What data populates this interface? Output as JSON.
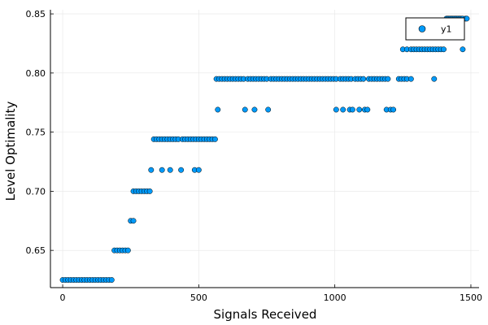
{
  "chart_data": {
    "type": "scatter",
    "title": "",
    "xlabel": "Signals Received",
    "ylabel": "Level Optimality",
    "xlim": [
      -45,
      1530
    ],
    "ylim": [
      0.6185,
      0.8535
    ],
    "xticks": [
      0,
      500,
      1000,
      1500
    ],
    "yticks": [
      0.65,
      0.7,
      0.75,
      0.8,
      0.85
    ],
    "ytick_labels": [
      "0.65",
      "0.70",
      "0.75",
      "0.80",
      "0.85"
    ],
    "grid": true,
    "legend": {
      "position": "top-right",
      "entries": [
        "y1"
      ]
    },
    "colors": {
      "marker": "#009af9",
      "marker_edge": "#000000",
      "grid": "#e6e6e6",
      "axis": "#000000"
    },
    "series": [
      {
        "name": "y1",
        "points": [
          [
            0,
            0.625
          ],
          [
            10,
            0.625
          ],
          [
            20,
            0.625
          ],
          [
            30,
            0.625
          ],
          [
            40,
            0.625
          ],
          [
            50,
            0.625
          ],
          [
            60,
            0.625
          ],
          [
            70,
            0.625
          ],
          [
            80,
            0.625
          ],
          [
            90,
            0.625
          ],
          [
            100,
            0.625
          ],
          [
            110,
            0.625
          ],
          [
            120,
            0.625
          ],
          [
            130,
            0.625
          ],
          [
            140,
            0.625
          ],
          [
            150,
            0.625
          ],
          [
            160,
            0.625
          ],
          [
            170,
            0.625
          ],
          [
            180,
            0.625
          ],
          [
            190,
            0.65
          ],
          [
            200,
            0.65
          ],
          [
            210,
            0.65
          ],
          [
            220,
            0.65
          ],
          [
            230,
            0.65
          ],
          [
            240,
            0.65
          ],
          [
            250,
            0.675
          ],
          [
            260,
            0.675
          ],
          [
            260,
            0.7
          ],
          [
            270,
            0.7
          ],
          [
            280,
            0.7
          ],
          [
            290,
            0.7
          ],
          [
            300,
            0.7
          ],
          [
            310,
            0.7
          ],
          [
            320,
            0.7
          ],
          [
            325,
            0.718
          ],
          [
            365,
            0.718
          ],
          [
            395,
            0.718
          ],
          [
            435,
            0.718
          ],
          [
            485,
            0.718
          ],
          [
            500,
            0.718
          ],
          [
            335,
            0.744
          ],
          [
            345,
            0.744
          ],
          [
            355,
            0.744
          ],
          [
            365,
            0.744
          ],
          [
            375,
            0.744
          ],
          [
            385,
            0.744
          ],
          [
            395,
            0.744
          ],
          [
            405,
            0.744
          ],
          [
            415,
            0.744
          ],
          [
            425,
            0.744
          ],
          [
            440,
            0.744
          ],
          [
            450,
            0.744
          ],
          [
            460,
            0.744
          ],
          [
            470,
            0.744
          ],
          [
            480,
            0.744
          ],
          [
            490,
            0.744
          ],
          [
            500,
            0.744
          ],
          [
            510,
            0.744
          ],
          [
            520,
            0.744
          ],
          [
            530,
            0.744
          ],
          [
            540,
            0.744
          ],
          [
            550,
            0.744
          ],
          [
            560,
            0.744
          ],
          [
            565,
            0.795
          ],
          [
            575,
            0.795
          ],
          [
            585,
            0.795
          ],
          [
            595,
            0.795
          ],
          [
            605,
            0.795
          ],
          [
            615,
            0.795
          ],
          [
            625,
            0.795
          ],
          [
            635,
            0.795
          ],
          [
            645,
            0.795
          ],
          [
            655,
            0.795
          ],
          [
            665,
            0.795
          ],
          [
            680,
            0.795
          ],
          [
            690,
            0.795
          ],
          [
            700,
            0.795
          ],
          [
            710,
            0.795
          ],
          [
            720,
            0.795
          ],
          [
            730,
            0.795
          ],
          [
            740,
            0.795
          ],
          [
            750,
            0.795
          ],
          [
            765,
            0.795
          ],
          [
            775,
            0.795
          ],
          [
            785,
            0.795
          ],
          [
            795,
            0.795
          ],
          [
            805,
            0.795
          ],
          [
            815,
            0.795
          ],
          [
            825,
            0.795
          ],
          [
            835,
            0.795
          ],
          [
            845,
            0.795
          ],
          [
            855,
            0.795
          ],
          [
            865,
            0.795
          ],
          [
            875,
            0.795
          ],
          [
            885,
            0.795
          ],
          [
            895,
            0.795
          ],
          [
            905,
            0.795
          ],
          [
            915,
            0.795
          ],
          [
            925,
            0.795
          ],
          [
            935,
            0.795
          ],
          [
            945,
            0.795
          ],
          [
            955,
            0.795
          ],
          [
            965,
            0.795
          ],
          [
            975,
            0.795
          ],
          [
            985,
            0.795
          ],
          [
            995,
            0.795
          ],
          [
            1005,
            0.795
          ],
          [
            1020,
            0.795
          ],
          [
            1030,
            0.795
          ],
          [
            1040,
            0.795
          ],
          [
            1050,
            0.795
          ],
          [
            1060,
            0.795
          ],
          [
            1075,
            0.795
          ],
          [
            1085,
            0.795
          ],
          [
            1095,
            0.795
          ],
          [
            1105,
            0.795
          ],
          [
            1125,
            0.795
          ],
          [
            1135,
            0.795
          ],
          [
            1145,
            0.795
          ],
          [
            1155,
            0.795
          ],
          [
            1165,
            0.795
          ],
          [
            1175,
            0.795
          ],
          [
            1185,
            0.795
          ],
          [
            1195,
            0.795
          ],
          [
            1235,
            0.795
          ],
          [
            1245,
            0.795
          ],
          [
            1255,
            0.795
          ],
          [
            1265,
            0.795
          ],
          [
            1280,
            0.795
          ],
          [
            1365,
            0.795
          ],
          [
            570,
            0.769
          ],
          [
            670,
            0.769
          ],
          [
            705,
            0.769
          ],
          [
            755,
            0.769
          ],
          [
            1005,
            0.769
          ],
          [
            1030,
            0.769
          ],
          [
            1055,
            0.769
          ],
          [
            1065,
            0.769
          ],
          [
            1090,
            0.769
          ],
          [
            1110,
            0.769
          ],
          [
            1120,
            0.769
          ],
          [
            1190,
            0.769
          ],
          [
            1205,
            0.769
          ],
          [
            1215,
            0.769
          ],
          [
            1250,
            0.82
          ],
          [
            1265,
            0.82
          ],
          [
            1280,
            0.82
          ],
          [
            1290,
            0.82
          ],
          [
            1300,
            0.82
          ],
          [
            1310,
            0.82
          ],
          [
            1320,
            0.82
          ],
          [
            1330,
            0.82
          ],
          [
            1340,
            0.82
          ],
          [
            1350,
            0.82
          ],
          [
            1360,
            0.82
          ],
          [
            1370,
            0.82
          ],
          [
            1380,
            0.82
          ],
          [
            1390,
            0.82
          ],
          [
            1400,
            0.82
          ],
          [
            1470,
            0.82
          ],
          [
            1410,
            0.846
          ],
          [
            1415,
            0.846
          ],
          [
            1420,
            0.846
          ],
          [
            1425,
            0.846
          ],
          [
            1430,
            0.846
          ],
          [
            1435,
            0.846
          ],
          [
            1440,
            0.846
          ],
          [
            1445,
            0.846
          ],
          [
            1450,
            0.846
          ],
          [
            1455,
            0.846
          ],
          [
            1460,
            0.846
          ],
          [
            1465,
            0.846
          ],
          [
            1470,
            0.846
          ],
          [
            1480,
            0.846
          ],
          [
            1485,
            0.846
          ]
        ]
      }
    ]
  }
}
